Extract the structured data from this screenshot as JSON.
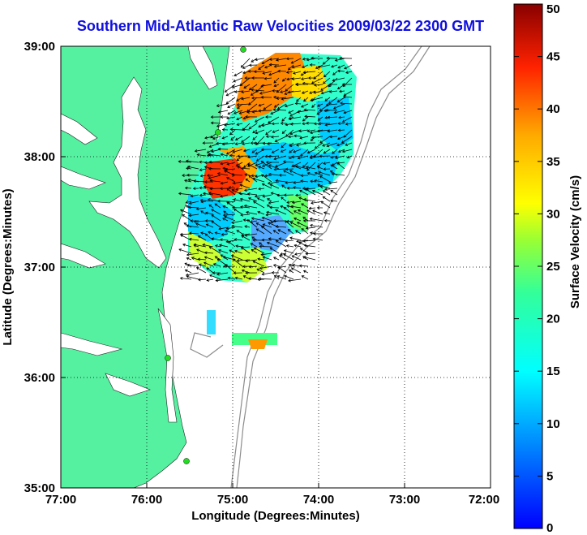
{
  "title": "Southern Mid-Atlantic Raw Velocities 2009/03/22 2300 GMT",
  "x_axis": {
    "label": "Longitude (Degrees:Minutes)",
    "ticks": [
      "77:00",
      "76:00",
      "75:00",
      "74:00",
      "73:00",
      "72:00"
    ]
  },
  "y_axis": {
    "label": "Latitude (Degrees:Minutes)",
    "ticks": [
      "39:00",
      "38:00",
      "37:00",
      "36:00",
      "35:00"
    ]
  },
  "colorbar": {
    "label": "Surface Velocity (cm/s)",
    "ticks": [
      "50",
      "45",
      "40",
      "35",
      "30",
      "25",
      "20",
      "15",
      "10",
      "5",
      "0"
    ],
    "range": [
      0,
      50
    ],
    "colormap": "jet"
  },
  "colors": {
    "title": "#1010e0",
    "land": "#55f0a0",
    "grid": "#000000",
    "bathymetry": "#8c8c8c",
    "station": "#22dd22"
  },
  "chart_data": {
    "type": "heatmap",
    "title": "Southern Mid-Atlantic Raw Velocities 2009/03/22 2300 GMT",
    "xlabel": "Longitude (Degrees:Minutes)",
    "ylabel": "Latitude (Degrees:Minutes)",
    "xlim": [
      -77,
      -72
    ],
    "ylim": [
      35,
      39
    ],
    "grid": true,
    "colorbar_label": "Surface Velocity (cm/s)",
    "clim": [
      0,
      50
    ],
    "regions": [
      {
        "lon": -74.4,
        "lat": 38.8,
        "speed": 38
      },
      {
        "lon": -74.8,
        "lat": 38.5,
        "speed": 42
      },
      {
        "lon": -74.2,
        "lat": 38.5,
        "speed": 25
      },
      {
        "lon": -74.3,
        "lat": 38.2,
        "speed": 12
      },
      {
        "lon": -75.3,
        "lat": 37.8,
        "speed": 45
      },
      {
        "lon": -74.5,
        "lat": 37.8,
        "speed": 8
      },
      {
        "lon": -75.3,
        "lat": 37.5,
        "speed": 8
      },
      {
        "lon": -74.6,
        "lat": 37.2,
        "speed": 5
      },
      {
        "lon": -75.0,
        "lat": 37.1,
        "speed": 20
      },
      {
        "lon": -74.8,
        "lat": 36.3,
        "speed": 25
      }
    ]
  }
}
